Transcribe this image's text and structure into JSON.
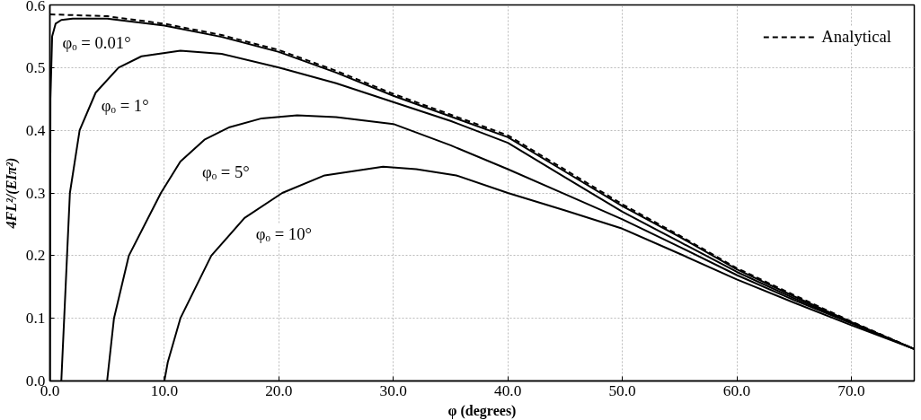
{
  "chart_data": {
    "type": "line",
    "xlabel": "φ (degrees)",
    "ylabel": "4FL²/(EIπ²)",
    "xlim": [
      0,
      75.5
    ],
    "ylim": [
      0,
      0.6
    ],
    "xticks": [
      {
        "value": 0,
        "label": "0.0"
      },
      {
        "value": 10,
        "label": "10.0"
      },
      {
        "value": 20,
        "label": "20.0"
      },
      {
        "value": 30,
        "label": "30.0"
      },
      {
        "value": 40,
        "label": "40.0"
      },
      {
        "value": 50,
        "label": "50.0"
      },
      {
        "value": 60,
        "label": "60.0"
      },
      {
        "value": 70,
        "label": "70.0"
      }
    ],
    "yticks": [
      {
        "value": 0,
        "label": "0.0"
      },
      0.1,
      0.2,
      0.3,
      0.4,
      0.5,
      0.6
    ],
    "grid": true,
    "legend": "top right",
    "marker": "none",
    "series": [
      {
        "name": "Analytical",
        "color": "#000000",
        "line_style": "dashed",
        "x": [
          0,
          5,
          10,
          15,
          20,
          25,
          30,
          35,
          40,
          45,
          50,
          55,
          60,
          65,
          70,
          75.5
        ],
        "values": [
          0.585,
          0.582,
          0.57,
          0.552,
          0.528,
          0.495,
          0.458,
          0.425,
          0.392,
          0.337,
          0.282,
          0.232,
          0.18,
          0.137,
          0.095,
          0.051
        ]
      },
      {
        "name": "φₒ = 0.01°",
        "color": "#000000",
        "line_style": "solid",
        "x": [
          0.01,
          0.05,
          0.2,
          0.5,
          1,
          2,
          5,
          10,
          15,
          20,
          25,
          30,
          35,
          40,
          45,
          50,
          55,
          60,
          65,
          70,
          75.5
        ],
        "values": [
          0,
          0.45,
          0.55,
          0.57,
          0.576,
          0.578,
          0.578,
          0.567,
          0.549,
          0.525,
          0.492,
          0.455,
          0.422,
          0.389,
          0.334,
          0.279,
          0.23,
          0.178,
          0.135,
          0.094,
          0.051
        ]
      },
      {
        "name": "φₒ = 1°",
        "color": "#000000",
        "line_style": "solid",
        "x": [
          1,
          1.5,
          1.75,
          2.6,
          4,
          6,
          8,
          11.4,
          15,
          20,
          25,
          30,
          35,
          40,
          45,
          50,
          55,
          60,
          65,
          70,
          75.5
        ],
        "values": [
          0,
          0.2,
          0.3,
          0.4,
          0.46,
          0.5,
          0.518,
          0.527,
          0.522,
          0.5,
          0.475,
          0.445,
          0.415,
          0.38,
          0.325,
          0.27,
          0.222,
          0.174,
          0.132,
          0.093,
          0.051
        ]
      },
      {
        "name": "φₒ = 5°",
        "color": "#000000",
        "line_style": "solid",
        "x": [
          5,
          5.6,
          6.9,
          9.7,
          11.4,
          13.5,
          15.7,
          18.5,
          21.6,
          25,
          30,
          35,
          40,
          45,
          50,
          55,
          60,
          65,
          70,
          75.5
        ],
        "values": [
          0,
          0.1,
          0.2,
          0.3,
          0.35,
          0.385,
          0.405,
          0.419,
          0.424,
          0.421,
          0.41,
          0.376,
          0.338,
          0.298,
          0.258,
          0.214,
          0.169,
          0.129,
          0.092,
          0.051
        ]
      },
      {
        "name": "φₒ = 10°",
        "color": "#000000",
        "line_style": "solid",
        "x": [
          10,
          10.3,
          11.4,
          14.1,
          17,
          20.3,
          24,
          29.1,
          32,
          35.5,
          40,
          45,
          50,
          55,
          60,
          65,
          70,
          75.5
        ],
        "values": [
          0,
          0.03,
          0.1,
          0.2,
          0.26,
          0.3,
          0.328,
          0.342,
          0.338,
          0.328,
          0.3,
          0.272,
          0.243,
          0.203,
          0.162,
          0.125,
          0.089,
          0.051
        ]
      }
    ]
  }
}
